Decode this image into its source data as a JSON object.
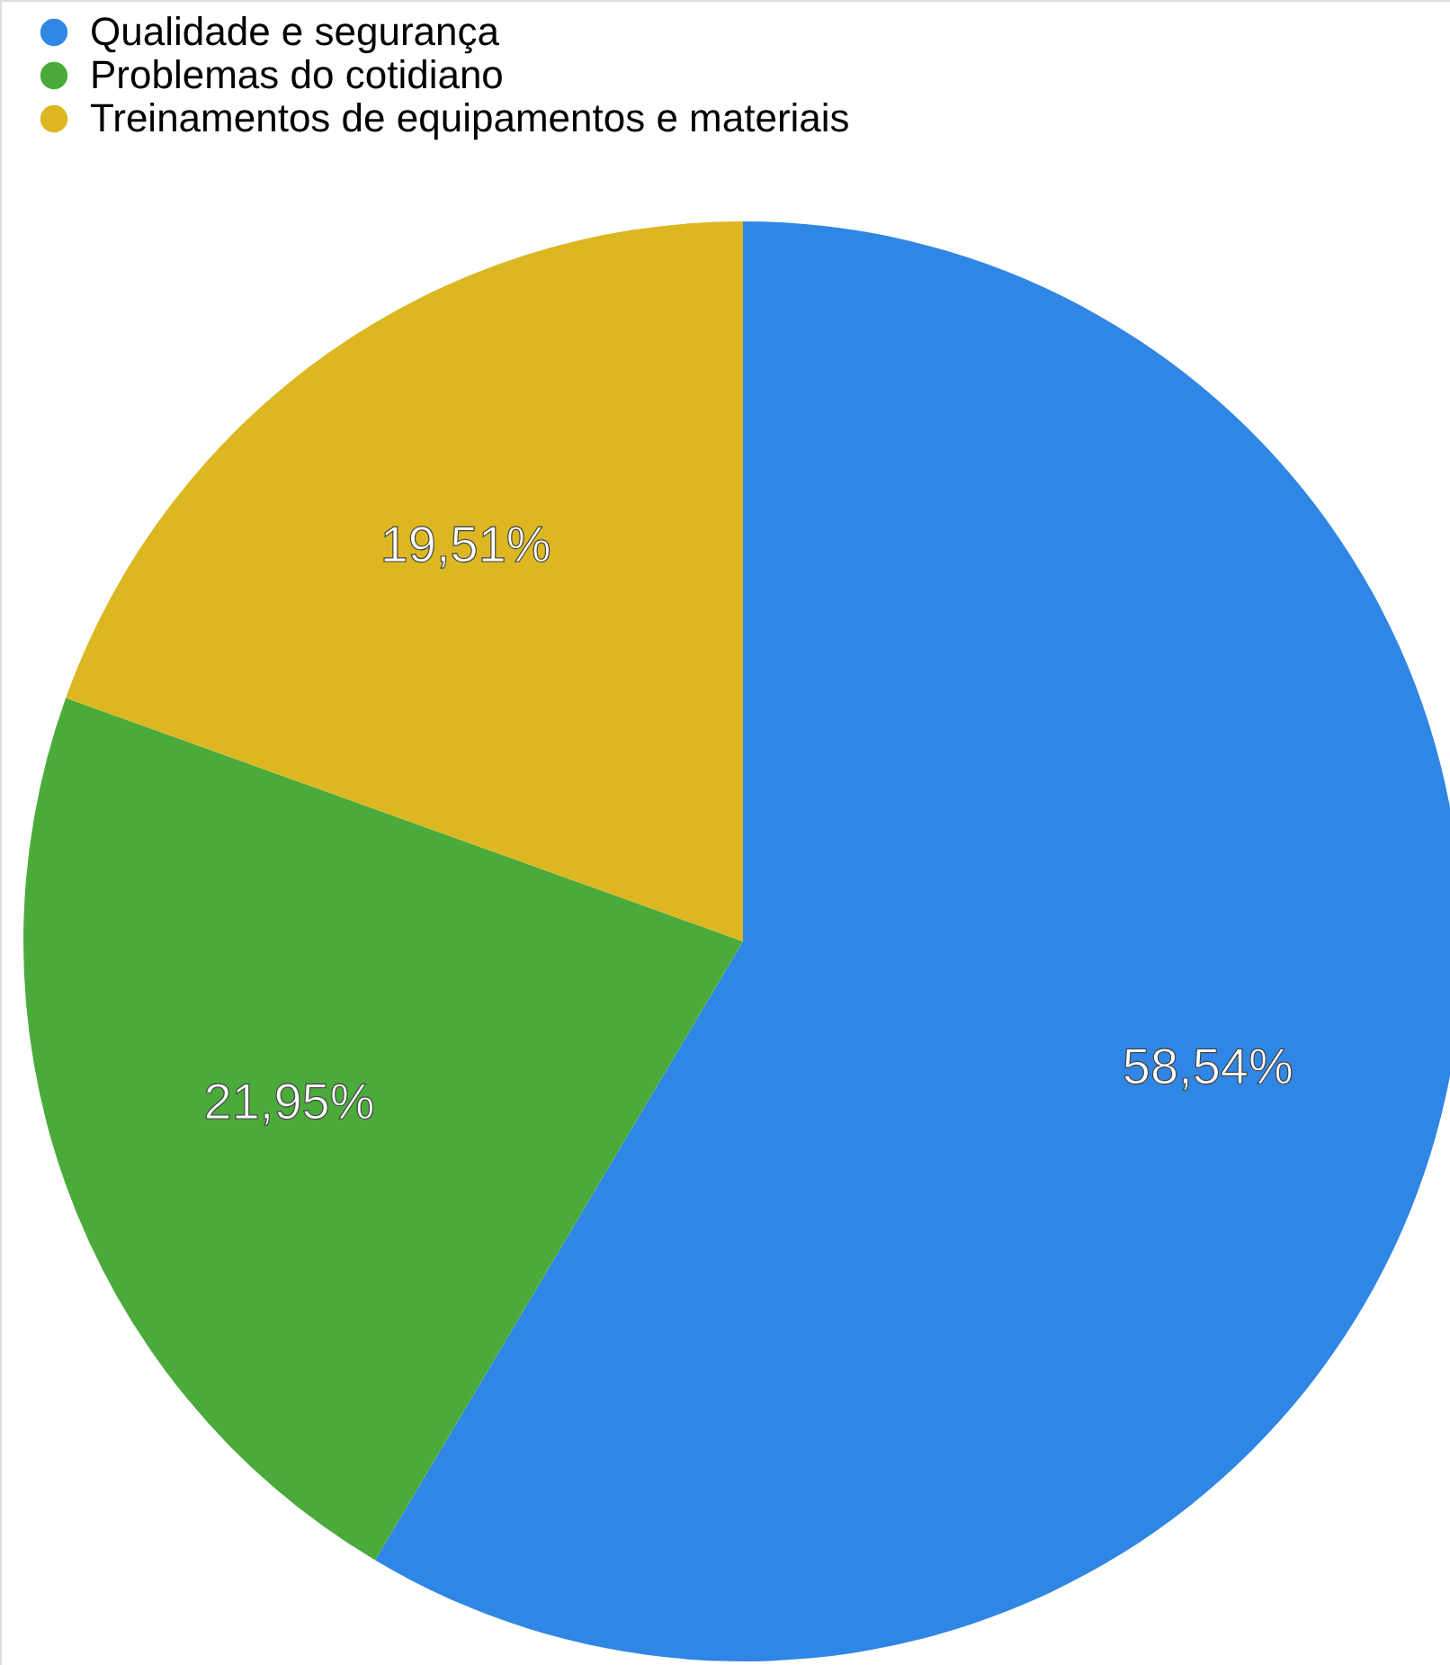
{
  "chart_data": {
    "type": "pie",
    "categories": [
      "Qualidade e segurança",
      "Problemas do cotidiano",
      "Treinamentos de equipamentos e materiais"
    ],
    "values": [
      58.54,
      21.95,
      19.51
    ],
    "colors": [
      "#2f86e4",
      "#4aab3a",
      "#dcb722"
    ],
    "value_labels": [
      "58,54%",
      "21,95%",
      "19,51%"
    ],
    "legend": "top left"
  }
}
